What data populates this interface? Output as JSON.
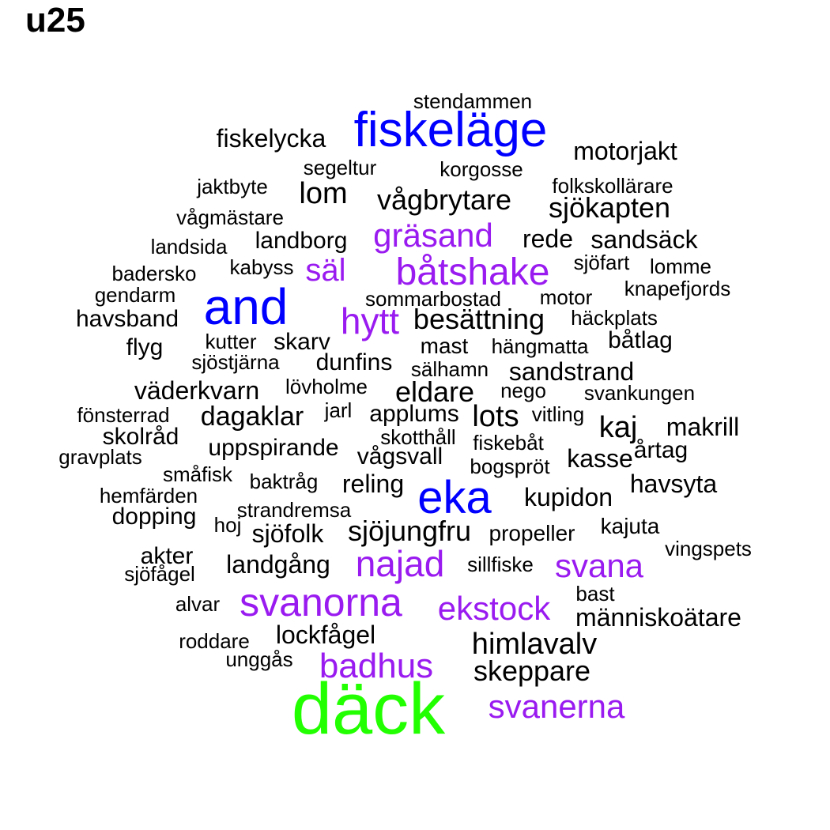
{
  "title": "u25",
  "colors": {
    "black": "#000000",
    "blue": "#0000ff",
    "purple": "#9a1bf0",
    "green": "#22ff00"
  },
  "words": [
    {
      "text": "stendammen",
      "color": "black"
    },
    {
      "text": "fiskeläge",
      "color": "blue"
    },
    {
      "text": "fiskelycka",
      "color": "black"
    },
    {
      "text": "motorjakt",
      "color": "black"
    },
    {
      "text": "segeltur",
      "color": "black"
    },
    {
      "text": "korgosse",
      "color": "black"
    },
    {
      "text": "jaktbyte",
      "color": "black"
    },
    {
      "text": "lom",
      "color": "black"
    },
    {
      "text": "vågbrytare",
      "color": "black"
    },
    {
      "text": "folkskollärare",
      "color": "black"
    },
    {
      "text": "sjökapten",
      "color": "black"
    },
    {
      "text": "vågmästare",
      "color": "black"
    },
    {
      "text": "gräsand",
      "color": "purple"
    },
    {
      "text": "rede",
      "color": "black"
    },
    {
      "text": "sandsäck",
      "color": "black"
    },
    {
      "text": "landsida",
      "color": "black"
    },
    {
      "text": "landborg",
      "color": "black"
    },
    {
      "text": "sjöfart",
      "color": "black"
    },
    {
      "text": "lomme",
      "color": "black"
    },
    {
      "text": "kabyss",
      "color": "black"
    },
    {
      "text": "säl",
      "color": "purple"
    },
    {
      "text": "båtshake",
      "color": "purple"
    },
    {
      "text": "badersko",
      "color": "black"
    },
    {
      "text": "knapefjords",
      "color": "black"
    },
    {
      "text": "gendarm",
      "color": "black"
    },
    {
      "text": "and",
      "color": "blue"
    },
    {
      "text": "sommarbostad",
      "color": "black"
    },
    {
      "text": "motor",
      "color": "black"
    },
    {
      "text": "havsband",
      "color": "black"
    },
    {
      "text": "hytt",
      "color": "purple"
    },
    {
      "text": "besättning",
      "color": "black"
    },
    {
      "text": "häckplats",
      "color": "black"
    },
    {
      "text": "flyg",
      "color": "black"
    },
    {
      "text": "kutter",
      "color": "black"
    },
    {
      "text": "skarv",
      "color": "black"
    },
    {
      "text": "mast",
      "color": "black"
    },
    {
      "text": "hängmatta",
      "color": "black"
    },
    {
      "text": "båtlag",
      "color": "black"
    },
    {
      "text": "sjöstjärna",
      "color": "black"
    },
    {
      "text": "dunfins",
      "color": "black"
    },
    {
      "text": "sälhamn",
      "color": "black"
    },
    {
      "text": "sandstrand",
      "color": "black"
    },
    {
      "text": "väderkvarn",
      "color": "black"
    },
    {
      "text": "lövholme",
      "color": "black"
    },
    {
      "text": "eldare",
      "color": "black"
    },
    {
      "text": "nego",
      "color": "black"
    },
    {
      "text": "svankungen",
      "color": "black"
    },
    {
      "text": "fönsterrad",
      "color": "black"
    },
    {
      "text": "dagaklar",
      "color": "black"
    },
    {
      "text": "jarl",
      "color": "black"
    },
    {
      "text": "applums",
      "color": "black"
    },
    {
      "text": "lots",
      "color": "black"
    },
    {
      "text": "vitling",
      "color": "black"
    },
    {
      "text": "kaj",
      "color": "black"
    },
    {
      "text": "makrill",
      "color": "black"
    },
    {
      "text": "skolråd",
      "color": "black"
    },
    {
      "text": "skotthåll",
      "color": "black"
    },
    {
      "text": "fiskebåt",
      "color": "black"
    },
    {
      "text": "uppspirande",
      "color": "black"
    },
    {
      "text": "gravplats",
      "color": "black"
    },
    {
      "text": "vågsvall",
      "color": "black"
    },
    {
      "text": "kasse",
      "color": "black"
    },
    {
      "text": "årtag",
      "color": "black"
    },
    {
      "text": "bogspröt",
      "color": "black"
    },
    {
      "text": "småfisk",
      "color": "black"
    },
    {
      "text": "baktråg",
      "color": "black"
    },
    {
      "text": "reling",
      "color": "black"
    },
    {
      "text": "havsyta",
      "color": "black"
    },
    {
      "text": "hemfärden",
      "color": "black"
    },
    {
      "text": "eka",
      "color": "blue"
    },
    {
      "text": "kupidon",
      "color": "black"
    },
    {
      "text": "strandremsa",
      "color": "black"
    },
    {
      "text": "dopping",
      "color": "black"
    },
    {
      "text": "hoj",
      "color": "black"
    },
    {
      "text": "sjöfolk",
      "color": "black"
    },
    {
      "text": "sjöjungfru",
      "color": "black"
    },
    {
      "text": "propeller",
      "color": "black"
    },
    {
      "text": "kajuta",
      "color": "black"
    },
    {
      "text": "vingspets",
      "color": "black"
    },
    {
      "text": "akter",
      "color": "black"
    },
    {
      "text": "landgång",
      "color": "black"
    },
    {
      "text": "najad",
      "color": "purple"
    },
    {
      "text": "sillfiske",
      "color": "black"
    },
    {
      "text": "svana",
      "color": "purple"
    },
    {
      "text": "sjöfågel",
      "color": "black"
    },
    {
      "text": "bast",
      "color": "black"
    },
    {
      "text": "alvar",
      "color": "black"
    },
    {
      "text": "svanorna",
      "color": "purple"
    },
    {
      "text": "ekstock",
      "color": "purple"
    },
    {
      "text": "människoätare",
      "color": "black"
    },
    {
      "text": "lockfågel",
      "color": "black"
    },
    {
      "text": "roddare",
      "color": "black"
    },
    {
      "text": "himlavalv",
      "color": "black"
    },
    {
      "text": "unggås",
      "color": "black"
    },
    {
      "text": "badhus",
      "color": "purple"
    },
    {
      "text": "skeppare",
      "color": "black"
    },
    {
      "text": "däck",
      "color": "green"
    },
    {
      "text": "svanerna",
      "color": "purple"
    }
  ]
}
